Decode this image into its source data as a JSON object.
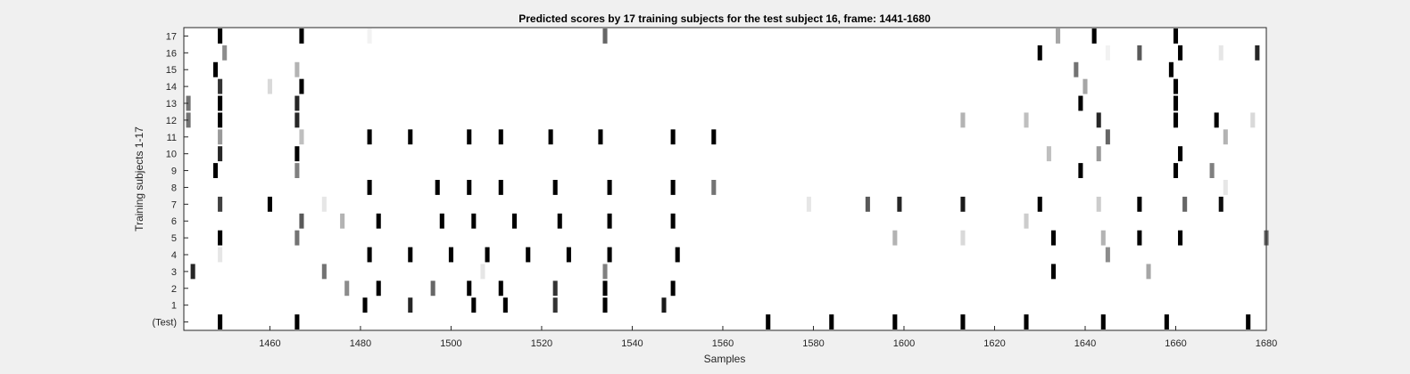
{
  "chart_data": {
    "type": "heatmap",
    "title": "Predicted scores by 17 training subjects for the test subject 16, frame: 1441-1680",
    "xlabel": "Samples",
    "ylabel": "Training subjects 1-17",
    "xlim": [
      1441,
      1680
    ],
    "xticks": [
      1460,
      1480,
      1500,
      1520,
      1540,
      1560,
      1580,
      1600,
      1620,
      1640,
      1660,
      1680
    ],
    "value_range": [
      0,
      1
    ],
    "colormap": "white-to-black (1 = black)",
    "rows": [
      {
        "label": "(Test)",
        "cells": [
          [
            1449,
            1
          ],
          [
            1466,
            1
          ],
          [
            1570,
            1
          ],
          [
            1584,
            1
          ],
          [
            1598,
            1
          ],
          [
            1613,
            1
          ],
          [
            1627,
            1
          ],
          [
            1644,
            1
          ],
          [
            1658,
            1
          ],
          [
            1676,
            1
          ]
        ]
      },
      {
        "label": "1",
        "cells": [
          [
            1481,
            1
          ],
          [
            1491,
            0.85
          ],
          [
            1505,
            1
          ],
          [
            1512,
            1
          ],
          [
            1523,
            0.8
          ],
          [
            1534,
            1
          ],
          [
            1547,
            0.9
          ]
        ]
      },
      {
        "label": "2",
        "cells": [
          [
            1477,
            0.45
          ],
          [
            1484,
            1
          ],
          [
            1496,
            0.6
          ],
          [
            1504,
            1
          ],
          [
            1511,
            1
          ],
          [
            1523,
            0.8
          ],
          [
            1534,
            1
          ],
          [
            1549,
            1
          ]
        ]
      },
      {
        "label": "3",
        "cells": [
          [
            1443,
            0.85
          ],
          [
            1472,
            0.55
          ],
          [
            1507,
            0.1
          ],
          [
            1534,
            0.5
          ],
          [
            1633,
            1
          ],
          [
            1654,
            0.35
          ]
        ]
      },
      {
        "label": "4",
        "cells": [
          [
            1449,
            0.1
          ],
          [
            1482,
            1
          ],
          [
            1491,
            1
          ],
          [
            1500,
            1
          ],
          [
            1508,
            1
          ],
          [
            1517,
            1
          ],
          [
            1526,
            1
          ],
          [
            1535,
            1
          ],
          [
            1550,
            1
          ],
          [
            1645,
            0.45
          ]
        ]
      },
      {
        "label": "5",
        "cells": [
          [
            1449,
            1
          ],
          [
            1466,
            0.55
          ],
          [
            1598,
            0.3
          ],
          [
            1613,
            0.15
          ],
          [
            1633,
            1
          ],
          [
            1644,
            0.3
          ],
          [
            1652,
            1
          ],
          [
            1661,
            1
          ],
          [
            1680,
            0.6
          ]
        ]
      },
      {
        "label": "6",
        "cells": [
          [
            1467,
            0.65
          ],
          [
            1476,
            0.3
          ],
          [
            1484,
            1
          ],
          [
            1498,
            1
          ],
          [
            1505,
            1
          ],
          [
            1514,
            1
          ],
          [
            1524,
            1
          ],
          [
            1535,
            1
          ],
          [
            1549,
            1
          ],
          [
            1627,
            0.2
          ]
        ]
      },
      {
        "label": "7",
        "cells": [
          [
            1449,
            0.75
          ],
          [
            1460,
            1
          ],
          [
            1472,
            0.1
          ],
          [
            1579,
            0.1
          ],
          [
            1592,
            0.65
          ],
          [
            1599,
            0.85
          ],
          [
            1613,
            0.9
          ],
          [
            1630,
            1
          ],
          [
            1643,
            0.2
          ],
          [
            1652,
            1
          ],
          [
            1662,
            0.6
          ],
          [
            1670,
            0.95
          ]
        ]
      },
      {
        "label": "8",
        "cells": [
          [
            1482,
            1
          ],
          [
            1497,
            1
          ],
          [
            1504,
            1
          ],
          [
            1511,
            1
          ],
          [
            1523,
            1
          ],
          [
            1535,
            1
          ],
          [
            1549,
            1
          ],
          [
            1558,
            0.55
          ],
          [
            1671,
            0.1
          ]
        ]
      },
      {
        "label": "9",
        "cells": [
          [
            1448,
            1
          ],
          [
            1466,
            0.5
          ],
          [
            1639,
            1
          ],
          [
            1660,
            1
          ],
          [
            1668,
            0.5
          ]
        ]
      },
      {
        "label": "10",
        "cells": [
          [
            1449,
            0.85
          ],
          [
            1466,
            1
          ],
          [
            1632,
            0.25
          ],
          [
            1643,
            0.4
          ],
          [
            1661,
            1
          ]
        ]
      },
      {
        "label": "11",
        "cells": [
          [
            1449,
            0.4
          ],
          [
            1467,
            0.25
          ],
          [
            1482,
            1
          ],
          [
            1491,
            1
          ],
          [
            1504,
            1
          ],
          [
            1511,
            1
          ],
          [
            1522,
            1
          ],
          [
            1533,
            1
          ],
          [
            1549,
            1
          ],
          [
            1558,
            1
          ],
          [
            1645,
            0.6
          ],
          [
            1671,
            0.3
          ]
        ]
      },
      {
        "label": "12",
        "cells": [
          [
            1442,
            0.55
          ],
          [
            1449,
            1
          ],
          [
            1466,
            0.85
          ],
          [
            1613,
            0.3
          ],
          [
            1627,
            0.25
          ],
          [
            1643,
            0.85
          ],
          [
            1660,
            1
          ],
          [
            1669,
            1
          ],
          [
            1677,
            0.15
          ]
        ]
      },
      {
        "label": "13",
        "cells": [
          [
            1442,
            0.55
          ],
          [
            1449,
            1
          ],
          [
            1466,
            0.85
          ],
          [
            1639,
            1
          ],
          [
            1660,
            1
          ]
        ]
      },
      {
        "label": "14",
        "cells": [
          [
            1449,
            0.8
          ],
          [
            1460,
            0.15
          ],
          [
            1467,
            1
          ],
          [
            1640,
            0.35
          ],
          [
            1660,
            1
          ]
        ]
      },
      {
        "label": "15",
        "cells": [
          [
            1448,
            1
          ],
          [
            1466,
            0.3
          ],
          [
            1638,
            0.55
          ],
          [
            1659,
            1
          ]
        ]
      },
      {
        "label": "16",
        "cells": [
          [
            1450,
            0.45
          ],
          [
            1630,
            1
          ],
          [
            1645,
            0.05
          ],
          [
            1652,
            0.65
          ],
          [
            1661,
            1
          ],
          [
            1670,
            0.1
          ],
          [
            1678,
            0.85
          ]
        ]
      },
      {
        "label": "17",
        "cells": [
          [
            1449,
            1
          ],
          [
            1467,
            1
          ],
          [
            1482,
            0.05
          ],
          [
            1534,
            0.6
          ],
          [
            1634,
            0.35
          ],
          [
            1642,
            1
          ],
          [
            1660,
            1
          ]
        ]
      }
    ]
  }
}
